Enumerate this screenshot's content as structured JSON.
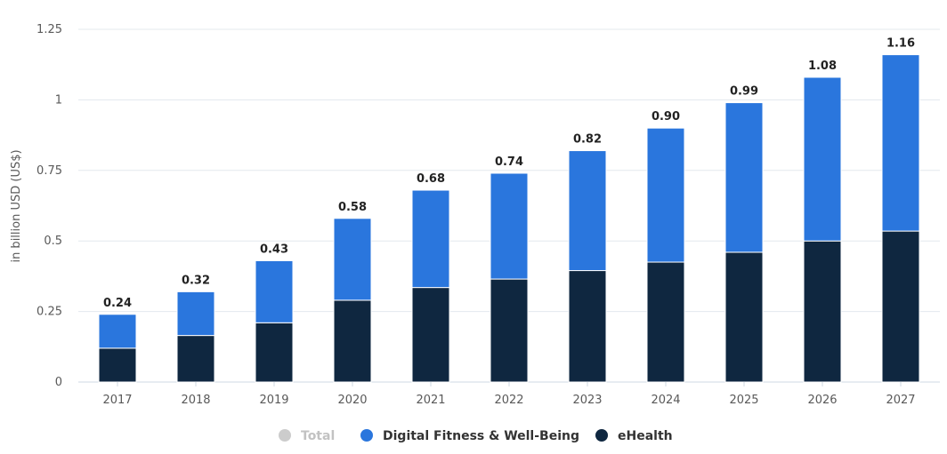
{
  "chart_data": {
    "type": "bar",
    "stacked": true,
    "categories": [
      "2017",
      "2018",
      "2019",
      "2020",
      "2021",
      "2022",
      "2023",
      "2024",
      "2025",
      "2026",
      "2027"
    ],
    "series": [
      {
        "name": "eHealth",
        "color": "#0f2740",
        "values": [
          0.12,
          0.165,
          0.21,
          0.29,
          0.335,
          0.365,
          0.395,
          0.425,
          0.46,
          0.5,
          0.535
        ]
      },
      {
        "name": "Digital Fitness & Well-Being",
        "color": "#2a76dd",
        "values": [
          0.12,
          0.155,
          0.22,
          0.29,
          0.345,
          0.375,
          0.425,
          0.475,
          0.53,
          0.58,
          0.625
        ]
      }
    ],
    "totals": [
      "0.24",
      "0.32",
      "0.43",
      "0.58",
      "0.68",
      "0.74",
      "0.82",
      "0.90",
      "0.99",
      "1.08",
      "1.16"
    ],
    "ylabel": "in billion USD (US$)",
    "yticks": [
      "0",
      "0.25",
      "0.5",
      "0.75",
      "1",
      "1.25"
    ],
    "ylim": [
      0,
      1.25
    ],
    "grid": true,
    "legend": {
      "placement": "bottom-center",
      "items": [
        {
          "name": "Total",
          "color": "#cccccc",
          "text_color": "#c2c2c2"
        },
        {
          "name": "Digital Fitness & Well-Being",
          "color": "#2a76dd",
          "text_color": "#333333"
        },
        {
          "name": "eHealth",
          "color": "#0f2740",
          "text_color": "#333333"
        }
      ]
    }
  }
}
